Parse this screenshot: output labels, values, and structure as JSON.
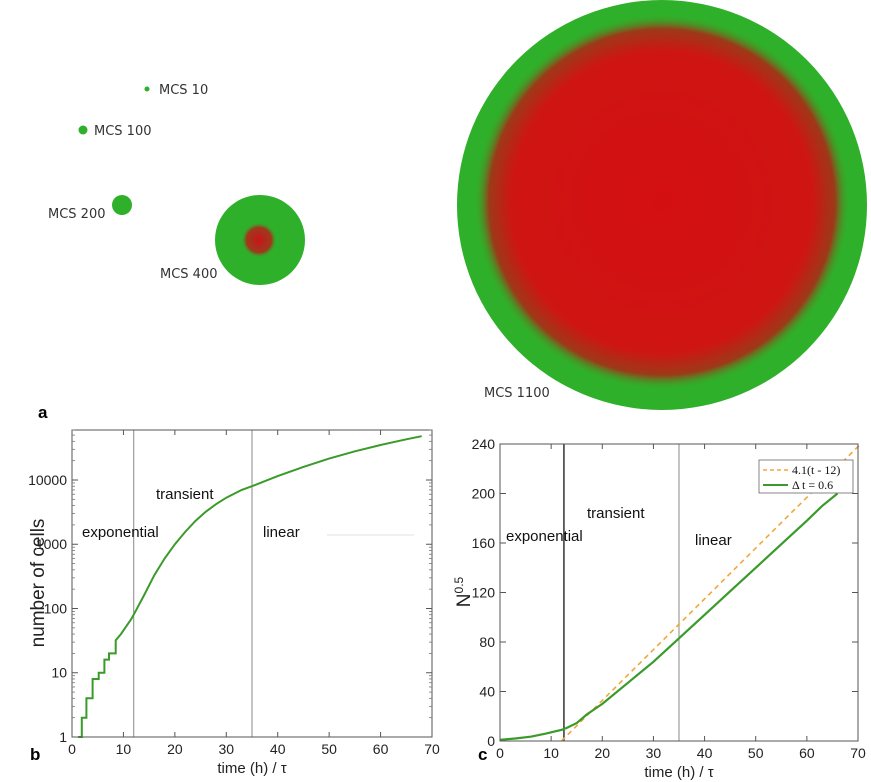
{
  "panel_a": {
    "letter": "a",
    "snapshots": [
      {
        "label": "MCS 10"
      },
      {
        "label": "MCS 100"
      },
      {
        "label": "MCS 200"
      },
      {
        "label": "MCS 400"
      },
      {
        "label": "MCS 1100"
      }
    ],
    "colors": {
      "outer_cells": "#2fb02a",
      "core_cells": "#d40f12"
    }
  },
  "chart_data": [
    {
      "type": "line",
      "panel": "b",
      "letter": "b",
      "xlabel": "time (h) / τ",
      "ylabel": "number of cells",
      "xlim": [
        0,
        70
      ],
      "ylim": [
        1,
        60000
      ],
      "yscale": "log",
      "xticks": [
        "0",
        "10",
        "20",
        "30",
        "40",
        "50",
        "60",
        "70"
      ],
      "yticks": [
        "1",
        "10",
        "100",
        "1000",
        "10000"
      ],
      "vlines": [
        12,
        35
      ],
      "annotations": [
        "exponential",
        "transient",
        "linear"
      ],
      "grid": false,
      "series": [
        {
          "color": "#3a9a2a",
          "x": [
            1.2,
            1.9,
            1.9,
            2.8,
            2.8,
            4.0,
            4.0,
            5.2,
            5.2,
            6.3,
            6.3,
            7.2,
            7.2,
            8.5,
            8.5,
            9.5,
            10.5,
            11.5,
            12,
            14,
            16,
            18,
            20,
            22,
            24,
            26,
            28,
            30,
            33,
            35,
            40,
            45,
            50,
            55,
            60,
            65,
            68
          ],
          "y": [
            1,
            1,
            2,
            2,
            4,
            4,
            8,
            8,
            10,
            10,
            16,
            16,
            20,
            20,
            32,
            40,
            52,
            68,
            80,
            160,
            330,
            600,
            1000,
            1550,
            2300,
            3200,
            4200,
            5300,
            7000,
            8000,
            11500,
            16000,
            21500,
            28000,
            35000,
            43000,
            48000
          ]
        }
      ]
    },
    {
      "type": "line",
      "panel": "c",
      "letter": "c",
      "xlabel": "time (h) / τ",
      "ylabel": "N",
      "ylabel_sup": "0.5",
      "xlim": [
        0,
        70
      ],
      "ylim": [
        0,
        240
      ],
      "xticks": [
        "0",
        "10",
        "20",
        "30",
        "40",
        "50",
        "60",
        "70"
      ],
      "yticks": [
        "0",
        "40",
        "80",
        "120",
        "160",
        "200",
        "240"
      ],
      "vlines": [
        12.5,
        35
      ],
      "annotations": [
        "exponential",
        "transient",
        "linear"
      ],
      "grid": false,
      "legend": "top-right",
      "series": [
        {
          "name": "4.1(t - 12)",
          "style": "dashed",
          "color": "#f2a53b",
          "x": [
            12,
            70.5
          ],
          "y": [
            0,
            240
          ]
        },
        {
          "name": "Δ t = 0.6",
          "style": "solid",
          "color": "#3a9a2a",
          "x": [
            0,
            3,
            6,
            9,
            11,
            12,
            13,
            15,
            17,
            20,
            25,
            30,
            35,
            40,
            45,
            50,
            55,
            60,
            63,
            66
          ],
          "y": [
            1,
            2,
            3.5,
            6,
            8,
            9,
            10.5,
            14.5,
            21.5,
            30,
            47,
            64,
            83,
            102,
            121,
            140,
            159,
            178,
            190,
            200
          ]
        }
      ]
    }
  ]
}
